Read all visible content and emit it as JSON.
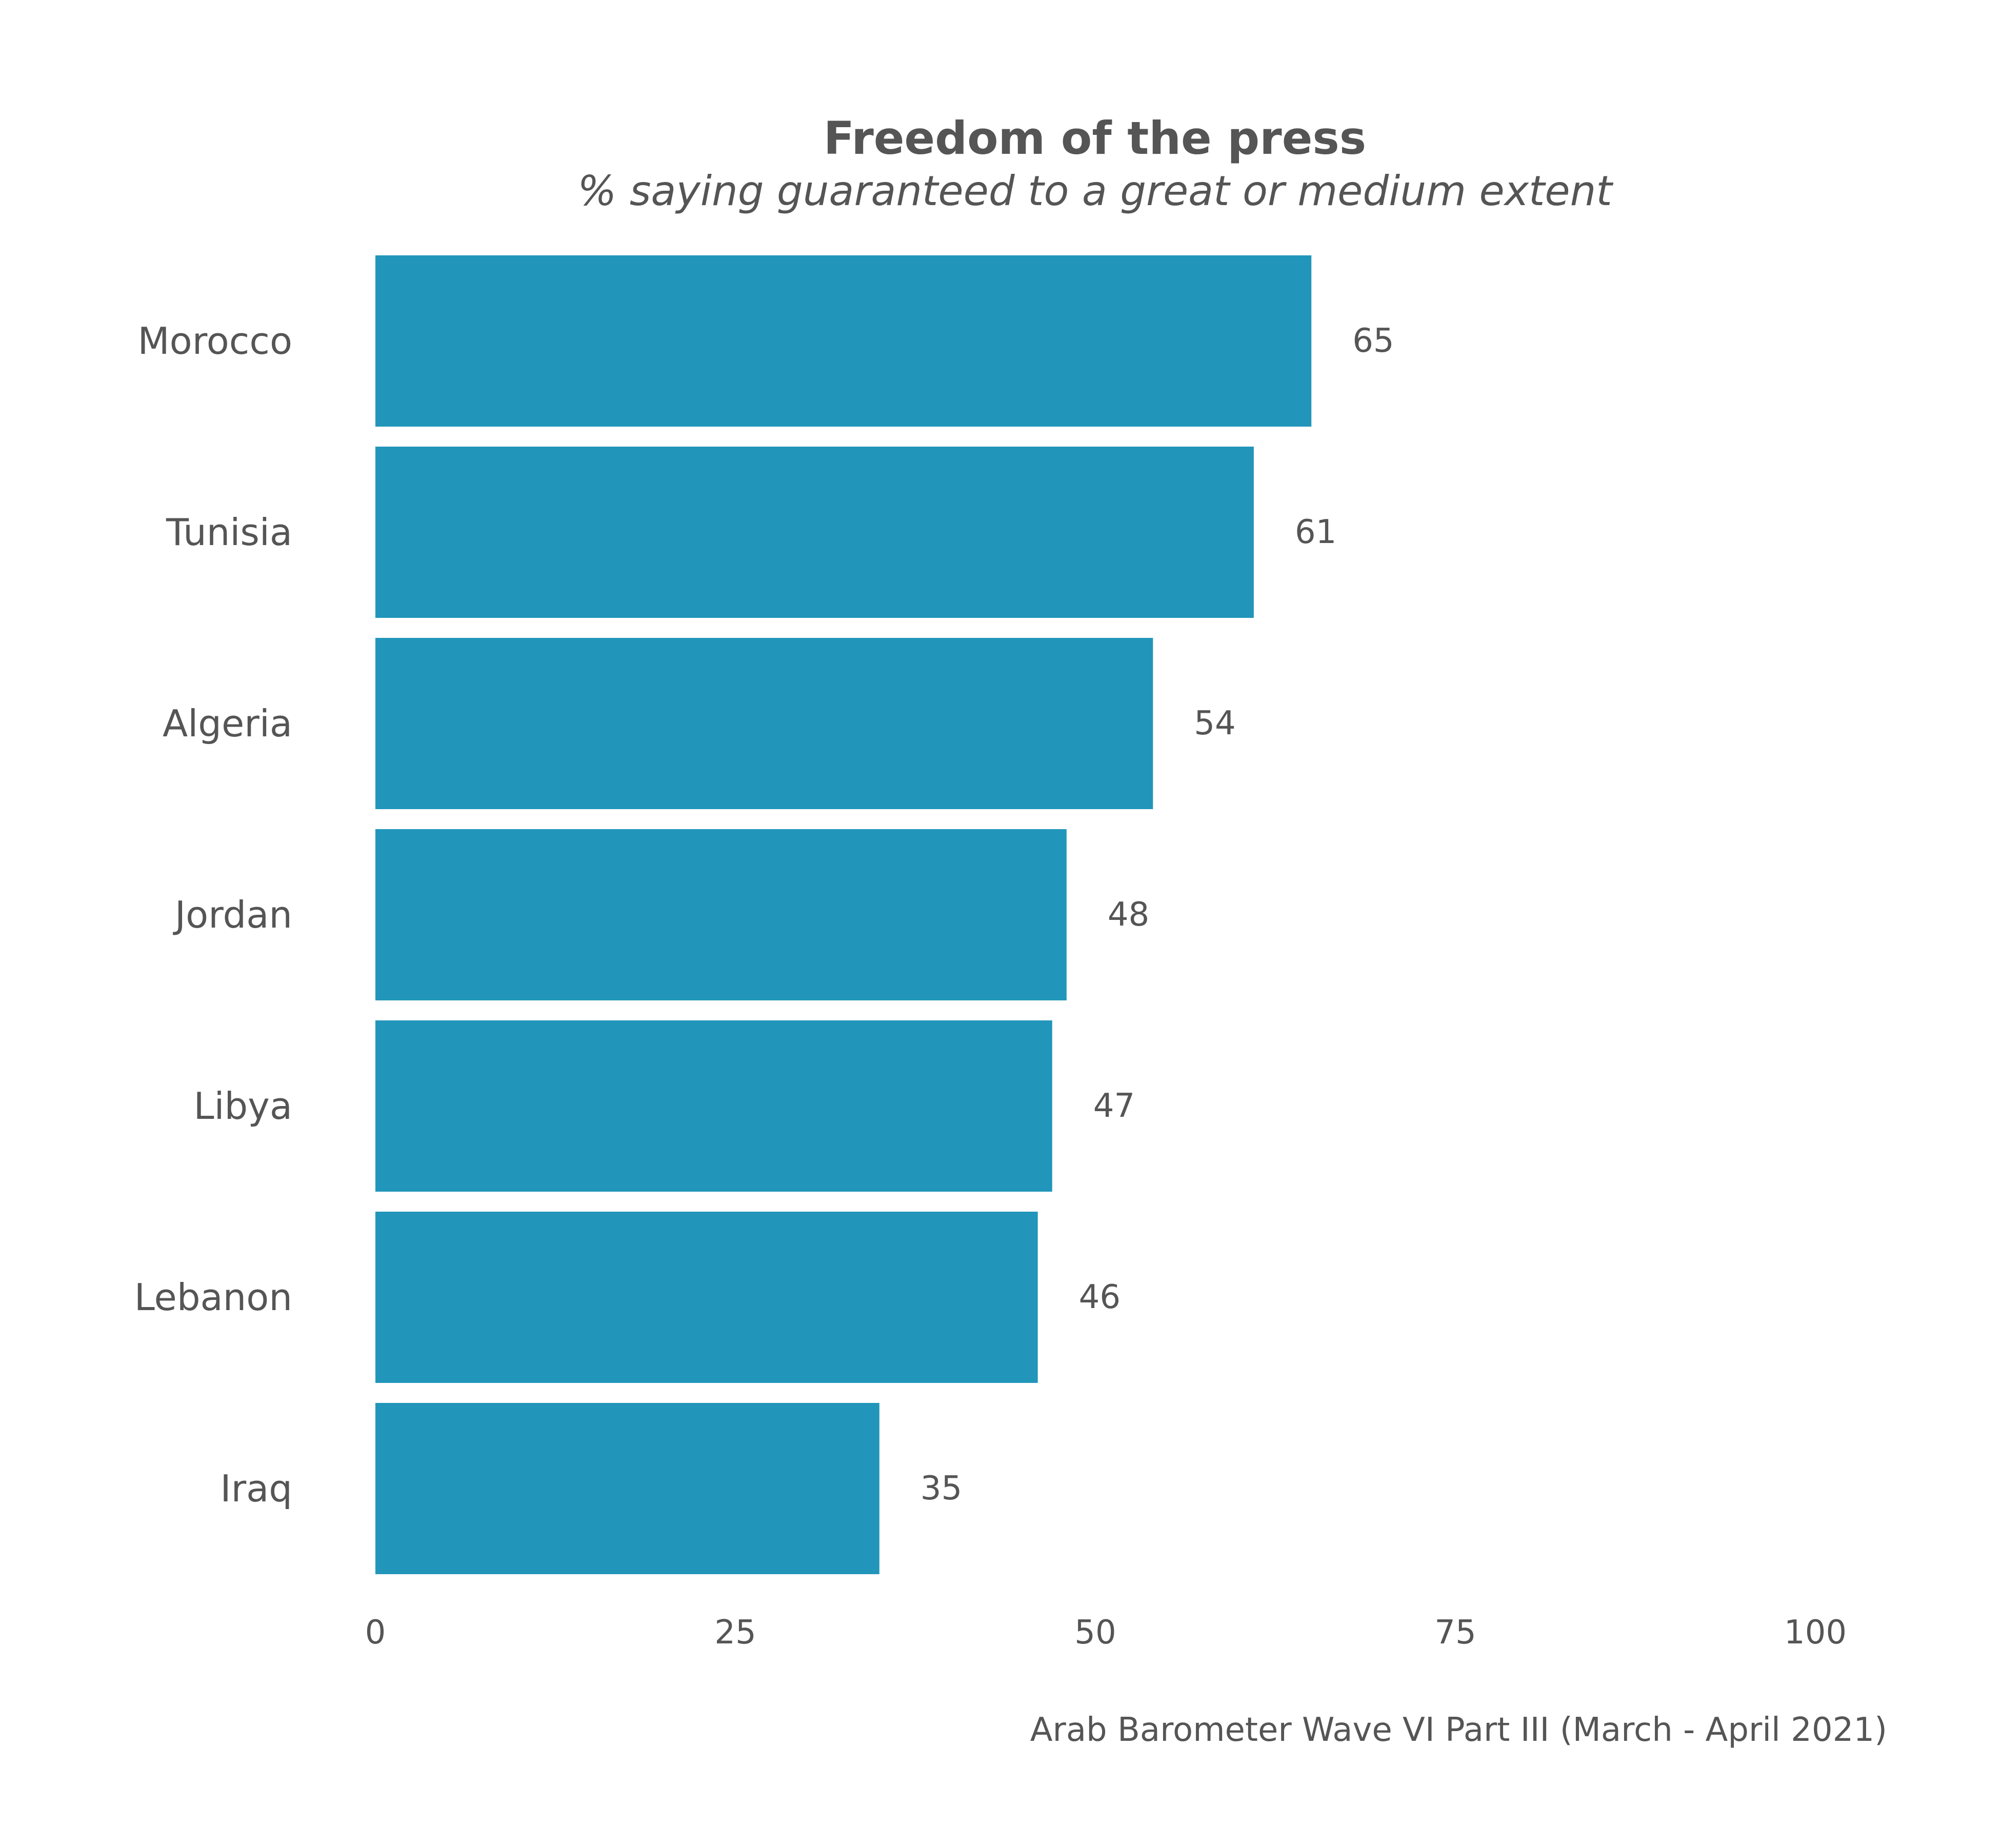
{
  "chart_data": {
    "type": "bar",
    "orientation": "horizontal",
    "title": "Freedom of the press",
    "subtitle": "% saying guaranteed to a great or medium extent",
    "categories": [
      "Morocco",
      "Tunisia",
      "Algeria",
      "Jordan",
      "Libya",
      "Lebanon",
      "Iraq"
    ],
    "values": [
      65,
      61,
      54,
      48,
      47,
      46,
      35
    ],
    "value_labels": [
      "65",
      "61",
      "54",
      "48",
      "47",
      "46",
      "35"
    ],
    "xlim": [
      0,
      100
    ],
    "x_ticks": [
      0,
      25,
      50,
      75,
      100
    ],
    "x_tick_labels": [
      "0",
      "25",
      "50",
      "75",
      "100"
    ],
    "xlabel": "",
    "ylabel": "",
    "caption": "Arab Barometer Wave VI Part III (March - April 2021)",
    "grid": false,
    "legend": "none",
    "bar_color": "#2196BA"
  }
}
